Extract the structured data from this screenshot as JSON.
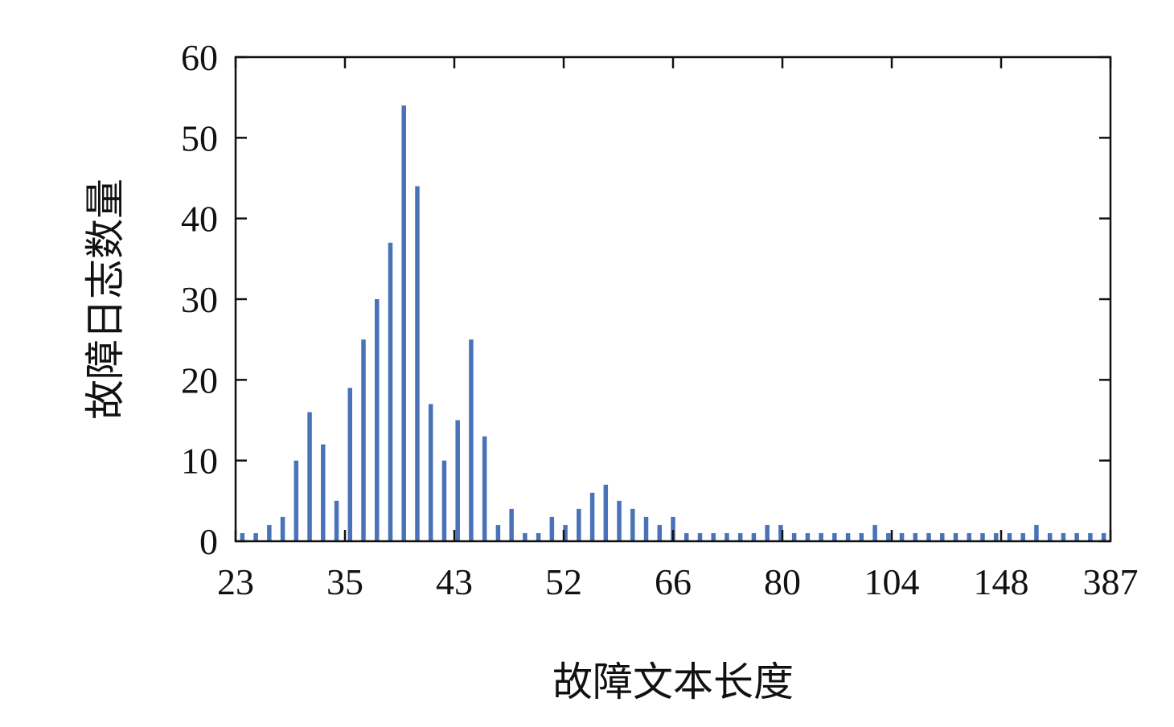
{
  "chart_data": {
    "type": "bar",
    "xlabel": "故障文本长度",
    "ylabel": "故障日志数量",
    "ylim": [
      0,
      60
    ],
    "yticks": [
      0,
      10,
      20,
      30,
      40,
      50,
      60
    ],
    "xtick_labels": [
      "23",
      "35",
      "43",
      "52",
      "66",
      "80",
      "104",
      "148",
      "387"
    ],
    "values": [
      1,
      1,
      2,
      3,
      10,
      16,
      12,
      5,
      19,
      25,
      30,
      37,
      54,
      44,
      17,
      10,
      15,
      25,
      13,
      2,
      4,
      1,
      1,
      3,
      2,
      4,
      6,
      7,
      5,
      4,
      3,
      2,
      3,
      1,
      1,
      1,
      1,
      1,
      1,
      2,
      2,
      1,
      1,
      1,
      1,
      1,
      1,
      2,
      1,
      1,
      1,
      1,
      1,
      1,
      1,
      1,
      1,
      1,
      1,
      2,
      1,
      1,
      1,
      1,
      1
    ],
    "bar_color": "#4a72b8",
    "grid": false
  }
}
